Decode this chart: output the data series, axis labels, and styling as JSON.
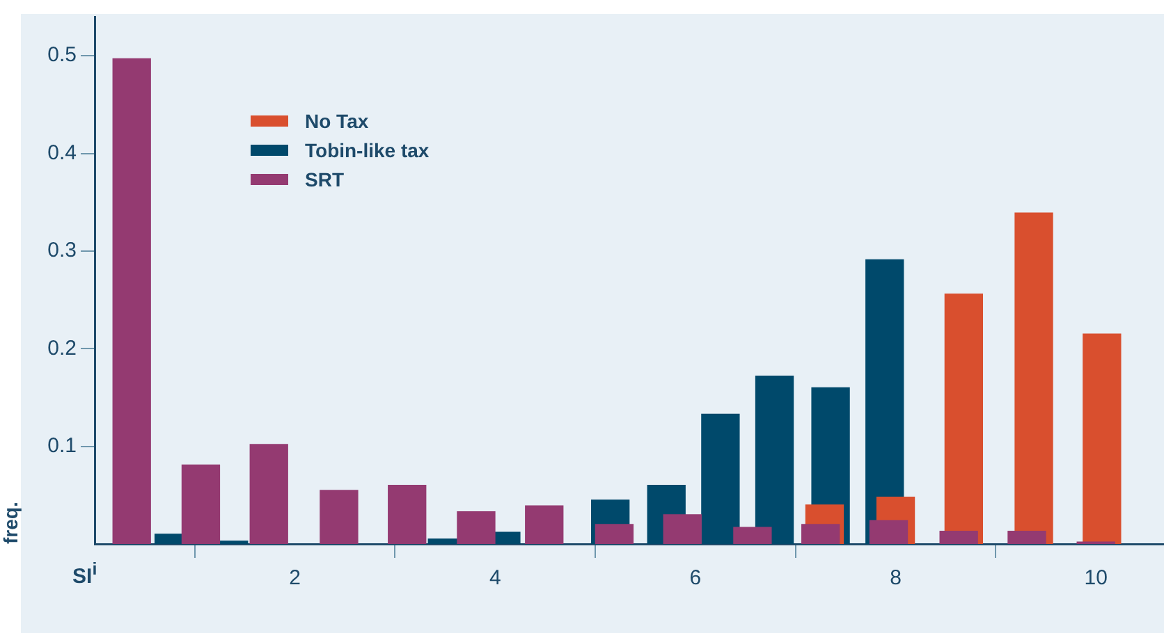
{
  "chart_data": {
    "type": "bar",
    "xlabel": "SI$^{i}$",
    "ylabel": "freq.",
    "xlim": [
      0,
      10.68
    ],
    "xticks": [
      2,
      4,
      6,
      8,
      10
    ],
    "ylim": [
      0,
      0.54
    ],
    "yticks": [
      0.1,
      0.2,
      0.3,
      0.4,
      0.5
    ],
    "grid": false,
    "legend": "top left",
    "series": [
      {
        "name": "No Tax",
        "color": "#d94f2e",
        "x": [
          7.29,
          8.0,
          8.68,
          9.38,
          10.06
        ],
        "values": [
          0.04,
          0.048,
          0.256,
          0.339,
          0.215
        ]
      },
      {
        "name": "Tobin-like tax",
        "color": "#00496b",
        "x": [
          0.79,
          1.34,
          1.88,
          2.43,
          2.97,
          3.52,
          4.06,
          4.61,
          5.15,
          5.71,
          6.25,
          6.79,
          7.35,
          7.89
        ],
        "values": [
          0.01,
          0.003,
          null,
          null,
          null,
          0.005,
          0.012,
          null,
          0.045,
          0.06,
          0.133,
          0.172,
          0.16,
          0.291
        ]
      },
      {
        "name": "SRT",
        "color": "#943a71",
        "x": [
          0.37,
          1.06,
          1.74,
          2.44,
          3.12,
          3.81,
          4.49,
          5.19,
          5.87,
          6.57,
          7.25,
          7.93,
          8.63,
          9.31,
          10.0
        ],
        "values": [
          0.497,
          0.081,
          0.102,
          0.055,
          0.06,
          0.033,
          0.039,
          0.02,
          0.03,
          0.017,
          0.02,
          0.024,
          0.013,
          0.013,
          0.002
        ]
      }
    ]
  }
}
